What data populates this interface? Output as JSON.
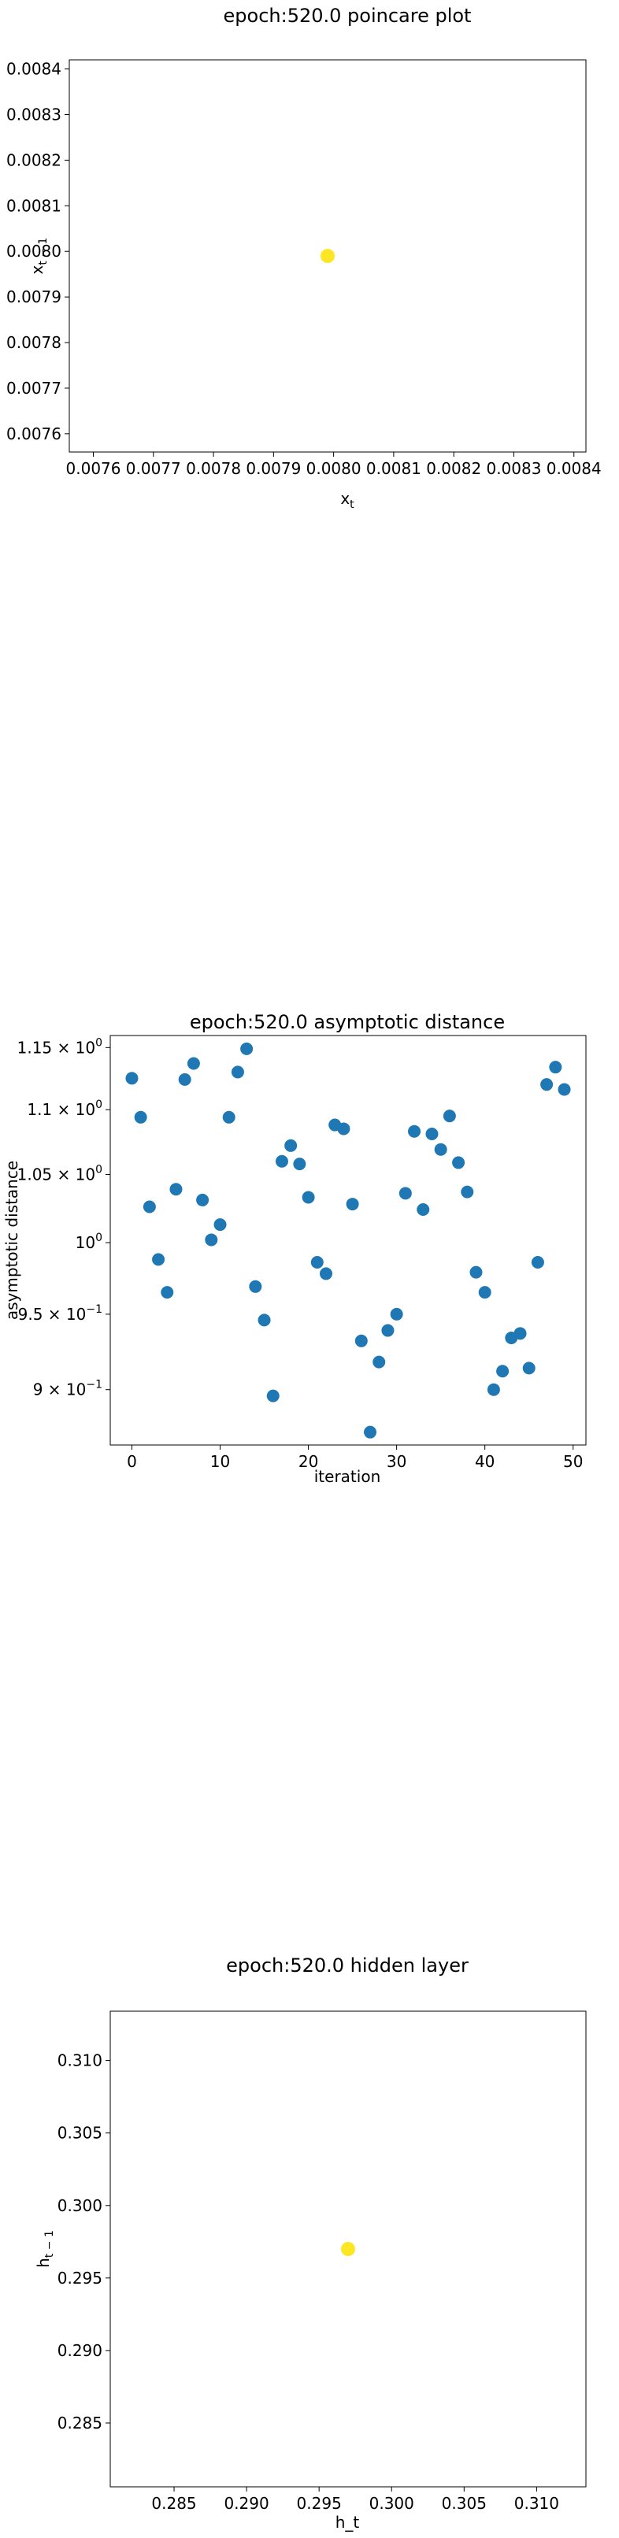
{
  "chart_data": [
    {
      "type": "scatter",
      "title": "epoch:520.0 poincare plot",
      "xlabel": "x_t",
      "ylabel": "x_{t-1}",
      "xlim": [
        0.00756,
        0.00842
      ],
      "ylim": [
        0.00756,
        0.00842
      ],
      "xticks": [
        "0.0076",
        "0.0077",
        "0.0078",
        "0.0079",
        "0.0080",
        "0.0081",
        "0.0082",
        "0.0083",
        "0.0084"
      ],
      "xtick_values": [
        0.0076,
        0.0077,
        0.0078,
        0.0079,
        0.008,
        0.0081,
        0.0082,
        0.0083,
        0.0084
      ],
      "yticks": [
        "0.0076",
        "0.0077",
        "0.0078",
        "0.0079",
        "0.0080",
        "0.0081",
        "0.0082",
        "0.0083",
        "0.0084"
      ],
      "ytick_values": [
        0.0076,
        0.0077,
        0.0078,
        0.0079,
        0.008,
        0.0081,
        0.0082,
        0.0083,
        0.0084
      ],
      "points": [
        {
          "x": 0.00799,
          "y": 0.00799
        }
      ],
      "color": "#fde725",
      "grid": false
    },
    {
      "type": "scatter",
      "title": "epoch:520.0 asymptotic distance",
      "xlabel": "iteration",
      "ylabel": "asymptotic distance",
      "yscale": "log",
      "xlim": [
        -2.45,
        51.45
      ],
      "ylim": [
        0.865,
        1.16
      ],
      "xticks": [
        "0",
        "10",
        "20",
        "30",
        "40",
        "50"
      ],
      "xtick_values": [
        0,
        10,
        20,
        30,
        40,
        50
      ],
      "yticks": [
        "1.15 × 10^0",
        "1.1 × 10^0",
        "1.05 × 10^0",
        "10^0",
        "9.5 × 10^-1",
        "9 × 10^-1"
      ],
      "ytick_values": [
        1.15,
        1.1,
        1.05,
        1.0,
        0.95,
        0.9
      ],
      "x": [
        0,
        1,
        2,
        3,
        4,
        5,
        6,
        7,
        8,
        9,
        10,
        11,
        12,
        13,
        14,
        15,
        16,
        17,
        18,
        19,
        20,
        21,
        22,
        23,
        24,
        25,
        26,
        27,
        28,
        29,
        30,
        31,
        32,
        33,
        34,
        35,
        36,
        37,
        38,
        39,
        40,
        41,
        42,
        43,
        44,
        45,
        46,
        47,
        48,
        49
      ],
      "y": [
        1.125,
        1.094,
        1.026,
        0.988,
        0.965,
        1.039,
        1.124,
        1.137,
        1.031,
        1.002,
        1.013,
        1.094,
        1.13,
        1.149,
        0.969,
        0.946,
        0.896,
        1.06,
        1.072,
        1.058,
        1.033,
        0.986,
        0.978,
        1.088,
        1.085,
        1.028,
        0.932,
        0.873,
        0.918,
        0.939,
        0.95,
        1.036,
        1.083,
        1.024,
        1.081,
        1.069,
        1.095,
        1.059,
        1.037,
        0.979,
        0.965,
        0.9,
        0.912,
        0.934,
        0.937,
        0.914,
        0.986,
        1.12,
        1.134,
        1.116
      ],
      "color": "#1f77b4",
      "grid": false
    },
    {
      "type": "scatter",
      "title": "epoch:520.0 hidden layer",
      "xlabel": "h_t",
      "ylabel": "h_{t-1}",
      "xlim": [
        0.2806,
        0.3134
      ],
      "ylim": [
        0.2806,
        0.3134
      ],
      "xticks": [
        "0.285",
        "0.290",
        "0.295",
        "0.300",
        "0.305",
        "0.310"
      ],
      "xtick_values": [
        0.285,
        0.29,
        0.295,
        0.3,
        0.305,
        0.31
      ],
      "yticks": [
        "0.285",
        "0.290",
        "0.295",
        "0.300",
        "0.305",
        "0.310"
      ],
      "ytick_values": [
        0.285,
        0.29,
        0.295,
        0.3,
        0.305,
        0.31
      ],
      "points": [
        {
          "x": 0.297,
          "y": 0.297
        }
      ],
      "color": "#fde725",
      "grid": false
    }
  ]
}
